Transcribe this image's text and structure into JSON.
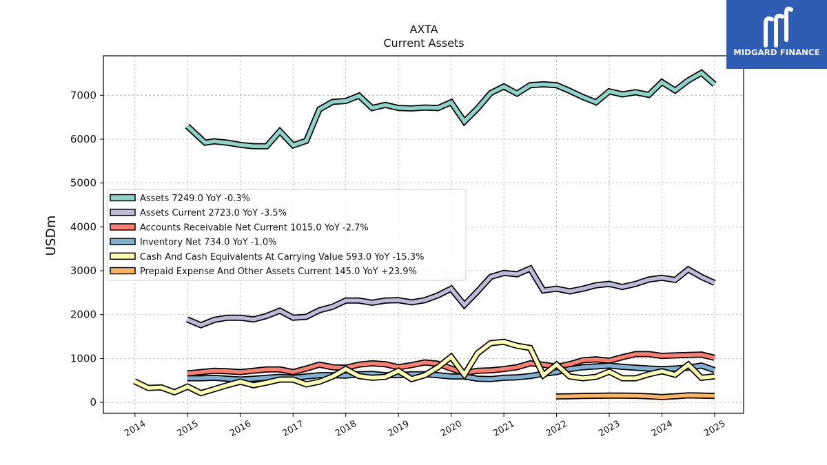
{
  "brand": {
    "name": "MIDGARD FINANCE",
    "color": "#2f5db4"
  },
  "chart_data": {
    "type": "line",
    "title": "AXTA",
    "subtitle": "Current  Assets",
    "xlabel": "",
    "ylabel": "USDm",
    "xlim": [
      2013.4,
      2025.55
    ],
    "ylim": [
      -250,
      7900
    ],
    "yticks": [
      0,
      1000,
      2000,
      3000,
      4000,
      5000,
      6000,
      7000
    ],
    "xticks": [
      "2014",
      "2015",
      "2016",
      "2017",
      "2018",
      "2019",
      "2020",
      "2021",
      "2022",
      "2023",
      "2024",
      "2025"
    ],
    "grid": true,
    "legend_position": "center-left",
    "series": [
      {
        "name": "Assets  7249.0 YoY -0.3%",
        "color": "#8dd3c7",
        "x": [
          2014.99,
          2015.33,
          2015.5,
          2015.75,
          2016.0,
          2016.25,
          2016.5,
          2016.75,
          2017.0,
          2017.25,
          2017.5,
          2017.75,
          2018.0,
          2018.25,
          2018.5,
          2018.75,
          2019.0,
          2019.25,
          2019.5,
          2019.75,
          2020.0,
          2020.25,
          2020.5,
          2020.75,
          2021.0,
          2021.25,
          2021.5,
          2021.75,
          2022.0,
          2022.25,
          2022.5,
          2022.75,
          2023.0,
          2023.25,
          2023.5,
          2023.75,
          2024.0,
          2024.25,
          2024.5,
          2024.75,
          2025.0
        ],
        "values": [
          6300,
          5920,
          5950,
          5920,
          5870,
          5840,
          5840,
          6180,
          5860,
          5960,
          6680,
          6850,
          6870,
          6990,
          6710,
          6780,
          6710,
          6700,
          6720,
          6710,
          6840,
          6400,
          6700,
          7050,
          7200,
          7040,
          7230,
          7250,
          7230,
          7100,
          6960,
          6840,
          7090,
          7020,
          7070,
          7010,
          7300,
          7110,
          7340,
          7510,
          7249
        ]
      },
      {
        "name": "Assets Current  2723.0 YoY -3.5%",
        "color": "#bebada",
        "x": [
          2014.99,
          2015.25,
          2015.5,
          2015.75,
          2016.0,
          2016.25,
          2016.5,
          2016.75,
          2017.0,
          2017.25,
          2017.5,
          2017.75,
          2018.0,
          2018.25,
          2018.5,
          2018.75,
          2019.0,
          2019.25,
          2019.5,
          2019.75,
          2020.0,
          2020.25,
          2020.5,
          2020.75,
          2021.0,
          2021.25,
          2021.5,
          2021.75,
          2022.0,
          2022.25,
          2022.5,
          2022.75,
          2023.0,
          2023.25,
          2023.5,
          2023.75,
          2024.0,
          2024.25,
          2024.5,
          2024.75,
          2025.0
        ],
        "values": [
          1890,
          1760,
          1880,
          1930,
          1930,
          1890,
          1970,
          2090,
          1930,
          1950,
          2100,
          2180,
          2320,
          2320,
          2270,
          2320,
          2330,
          2280,
          2330,
          2440,
          2590,
          2220,
          2530,
          2860,
          2950,
          2920,
          3050,
          2550,
          2590,
          2530,
          2590,
          2670,
          2700,
          2630,
          2700,
          2800,
          2840,
          2790,
          3030,
          2860,
          2723
        ]
      },
      {
        "name": "Accounts Receivable Net Current  1015.0 YoY -2.7%",
        "color": "#fb8072",
        "x": [
          2014.99,
          2015.25,
          2015.5,
          2015.75,
          2016.0,
          2016.25,
          2016.5,
          2016.75,
          2017.0,
          2017.25,
          2017.5,
          2017.75,
          2018.0,
          2018.25,
          2018.5,
          2018.75,
          2019.0,
          2019.25,
          2019.5,
          2019.75,
          2020.0,
          2020.25,
          2020.5,
          2020.75,
          2021.0,
          2021.25,
          2021.5,
          2021.75,
          2022.0,
          2022.25,
          2022.5,
          2022.75,
          2023.0,
          2023.25,
          2023.5,
          2023.75,
          2024.0,
          2024.25,
          2024.5,
          2024.75,
          2025.0
        ],
        "values": [
          660,
          690,
          720,
          710,
          690,
          720,
          750,
          750,
          690,
          770,
          860,
          800,
          790,
          860,
          890,
          870,
          800,
          850,
          910,
          880,
          770,
          670,
          720,
          730,
          760,
          800,
          890,
          860,
          810,
          870,
          960,
          980,
          950,
          1030,
          1100,
          1100,
          1060,
          1070,
          1080,
          1090,
          1015
        ]
      },
      {
        "name": "Inventory Net  734.0 YoY -1.0%",
        "color": "#80b1d3",
        "x": [
          2014.99,
          2015.25,
          2015.5,
          2015.75,
          2016.0,
          2016.25,
          2016.5,
          2016.75,
          2017.0,
          2017.25,
          2017.5,
          2017.75,
          2018.0,
          2018.25,
          2018.5,
          2018.75,
          2019.0,
          2019.25,
          2019.5,
          2019.75,
          2020.0,
          2020.25,
          2020.5,
          2020.75,
          2021.0,
          2021.25,
          2021.5,
          2021.75,
          2022.0,
          2022.25,
          2022.5,
          2022.75,
          2023.0,
          2023.25,
          2023.5,
          2023.75,
          2024.0,
          2024.25,
          2024.5,
          2024.75,
          2025.0
        ],
        "values": [
          550,
          550,
          560,
          540,
          520,
          540,
          560,
          580,
          560,
          590,
          620,
          620,
          610,
          640,
          650,
          620,
          620,
          640,
          640,
          620,
          590,
          590,
          540,
          530,
          560,
          570,
          600,
          650,
          690,
          760,
          800,
          820,
          840,
          810,
          790,
          770,
          760,
          770,
          790,
          840,
          734
        ]
      },
      {
        "name": "Cash And Cash Equivalents At Carrying Value  593.0 YoY -15.3%",
        "color": "#ffffb3",
        "x": [
          2013.99,
          2014.25,
          2014.5,
          2014.75,
          2015.0,
          2015.25,
          2015.5,
          2015.75,
          2016.0,
          2016.25,
          2016.5,
          2016.75,
          2017.0,
          2017.25,
          2017.5,
          2017.75,
          2018.0,
          2018.25,
          2018.5,
          2018.75,
          2019.0,
          2019.25,
          2019.5,
          2019.75,
          2020.0,
          2020.25,
          2020.5,
          2020.75,
          2021.0,
          2021.25,
          2021.5,
          2021.75,
          2022.0,
          2022.25,
          2022.5,
          2022.75,
          2023.0,
          2023.25,
          2023.5,
          2023.75,
          2024.0,
          2024.25,
          2024.5,
          2024.75,
          2025.0
        ],
        "values": [
          480,
          330,
          340,
          230,
          360,
          210,
          300,
          390,
          470,
          390,
          450,
          520,
          520,
          410,
          470,
          590,
          760,
          600,
          560,
          580,
          720,
          530,
          620,
          800,
          1040,
          630,
          1120,
          1350,
          1380,
          1290,
          1240,
          620,
          860,
          590,
          550,
          580,
          700,
          550,
          550,
          640,
          710,
          630,
          860,
          560,
          593
        ]
      },
      {
        "name": "Prepaid Expense And Other Assets Current  145.0 YoY +23.9%",
        "color": "#fdb462",
        "x": [
          2021.99,
          2022.25,
          2022.5,
          2022.75,
          2023.0,
          2023.25,
          2023.5,
          2023.75,
          2024.0,
          2024.25,
          2024.5,
          2024.75,
          2025.0
        ],
        "values": [
          135,
          140,
          145,
          150,
          155,
          155,
          150,
          140,
          120,
          140,
          160,
          155,
          145
        ]
      }
    ]
  }
}
